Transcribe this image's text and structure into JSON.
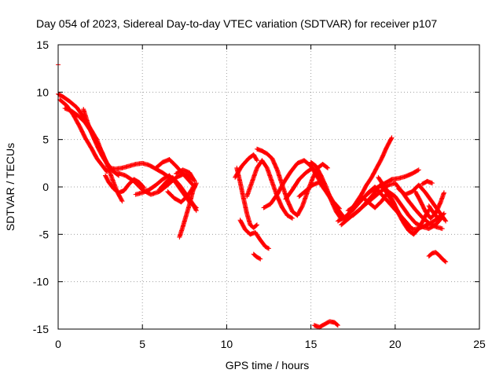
{
  "chart_data": {
    "type": "scatter",
    "title": "Day 054 of 2023, Sidereal Day-to-day VTEC variation (SDTVAR) for receiver p107",
    "xlabel": "GPS time / hours",
    "ylabel": "SDTVAR / TECUs",
    "xlim": [
      0,
      25
    ],
    "ylim": [
      -15,
      15
    ],
    "xticks": [
      "0",
      "5",
      "10",
      "15",
      "20",
      "25"
    ],
    "yticks": [
      "-15",
      "-10",
      "-5",
      "0",
      "5",
      "10",
      "15"
    ],
    "grid": true,
    "marker_color": "#ff0000",
    "series": [
      {
        "x": [
          0.0,
          0.3,
          0.7,
          1.1,
          1.5,
          1.9,
          2.3,
          2.6,
          2.9,
          3.2
        ],
        "y": [
          9.8,
          9.5,
          9.0,
          8.4,
          7.4,
          6.2,
          5.0,
          3.6,
          2.5,
          1.8
        ]
      },
      {
        "x": [
          0.1,
          0.5,
          0.9,
          1.3,
          1.6,
          2.0,
          2.3,
          2.6,
          2.9
        ],
        "y": [
          9.2,
          8.6,
          7.6,
          6.3,
          5.2,
          4.0,
          3.0,
          2.3,
          1.6
        ]
      },
      {
        "x": [
          0.4,
          0.8,
          1.2,
          1.6,
          1.9,
          2.2,
          2.6,
          2.9,
          3.2,
          3.5,
          3.8
        ],
        "y": [
          8.3,
          8.0,
          7.5,
          6.8,
          6.0,
          5.0,
          3.7,
          2.4,
          0.9,
          -0.5,
          -1.5
        ]
      },
      {
        "x": [
          1.5,
          1.8,
          2.1,
          2.4,
          2.7,
          3.0,
          3.3,
          3.6
        ],
        "y": [
          8.2,
          6.5,
          5.2,
          4.0,
          3.0,
          2.2,
          1.6,
          1.2
        ]
      },
      {
        "x": [
          2.8,
          3.0,
          3.3,
          3.6,
          3.9,
          4.2,
          4.5,
          4.8,
          5.1
        ],
        "y": [
          1.2,
          0.5,
          -0.2,
          -0.6,
          -0.4,
          0.3,
          0.8,
          0.5,
          -0.1
        ]
      },
      {
        "x": [
          3.0,
          3.4,
          3.8,
          4.2,
          4.6,
          5.0,
          5.4,
          5.8,
          6.2,
          6.6
        ],
        "y": [
          2.0,
          1.9,
          2.0,
          2.2,
          2.4,
          2.5,
          2.3,
          1.9,
          1.5,
          1.0
        ]
      },
      {
        "x": [
          3.5,
          4.0,
          4.5,
          5.0,
          5.5,
          6.0,
          6.5,
          7.0,
          7.5,
          8.0
        ],
        "y": [
          1.5,
          1.2,
          0.6,
          -0.3,
          -0.8,
          -0.5,
          0.2,
          1.0,
          1.4,
          0.8
        ]
      },
      {
        "x": [
          4.6,
          5.0,
          5.4,
          5.8,
          6.2,
          6.6,
          7.0,
          7.4,
          7.8,
          8.2
        ],
        "y": [
          -0.8,
          -0.6,
          -0.3,
          0.2,
          0.8,
          1.2,
          0.4,
          -0.6,
          -1.6,
          -2.2
        ]
      },
      {
        "x": [
          5.8,
          6.2,
          6.6,
          7.0,
          7.4,
          7.8,
          8.1
        ],
        "y": [
          2.0,
          2.6,
          2.9,
          2.2,
          1.4,
          0.6,
          0.0
        ]
      },
      {
        "x": [
          6.0,
          6.4,
          6.8,
          7.2,
          7.6,
          8.0,
          8.2
        ],
        "y": [
          -0.3,
          0.5,
          1.0,
          0.2,
          -0.8,
          -1.8,
          -2.5
        ]
      },
      {
        "x": [
          6.5,
          6.9,
          7.3,
          7.7,
          8.1
        ],
        "y": [
          -0.5,
          -1.2,
          -1.6,
          -0.9,
          0.2
        ]
      },
      {
        "x": [
          7.2,
          7.4,
          7.6,
          7.8,
          8.0,
          8.2
        ],
        "y": [
          -5.3,
          -4.2,
          -3.0,
          -1.8,
          -0.4,
          0.4
        ]
      },
      {
        "x": [
          7.0,
          7.4,
          7.8,
          8.1
        ],
        "y": [
          1.4,
          1.8,
          1.5,
          0.6
        ]
      },
      {
        "x": [
          10.6,
          10.8,
          11.0,
          11.2,
          11.4,
          11.6,
          11.8
        ],
        "y": [
          2.0,
          0.5,
          -1.2,
          -2.8,
          -4.0,
          -4.3,
          -4.0
        ]
      },
      {
        "x": [
          10.5,
          10.9,
          11.3,
          11.6,
          11.8
        ],
        "y": [
          1.0,
          2.2,
          3.0,
          3.4,
          2.8
        ]
      },
      {
        "x": [
          10.8,
          11.1,
          11.4,
          11.7,
          12.0,
          12.3,
          12.5
        ],
        "y": [
          -3.5,
          -4.5,
          -5.0,
          -4.8,
          -5.6,
          -6.3,
          -6.5
        ]
      },
      {
        "x": [
          11.6,
          11.8,
          12.0
        ],
        "y": [
          -7.1,
          -7.4,
          -7.6
        ]
      },
      {
        "x": [
          11.2,
          11.5,
          11.8,
          12.1,
          12.4,
          12.7,
          13.0,
          13.3,
          13.6,
          13.9
        ],
        "y": [
          -1.0,
          0.5,
          2.0,
          2.8,
          2.0,
          0.5,
          -1.0,
          -2.2,
          -3.0,
          -3.3
        ]
      },
      {
        "x": [
          11.8,
          12.1,
          12.4,
          12.7,
          13.0,
          13.3,
          13.6,
          13.9,
          14.2,
          14.5,
          14.8,
          15.1,
          15.4,
          15.7,
          16.0
        ],
        "y": [
          4.0,
          3.8,
          3.5,
          3.0,
          1.8,
          0.2,
          -1.4,
          -2.6,
          -3.0,
          -2.0,
          -0.5,
          0.9,
          2.0,
          2.4,
          2.0
        ]
      },
      {
        "x": [
          12.2,
          12.6,
          13.0,
          13.4,
          13.8,
          14.2,
          14.6,
          15.0,
          15.4,
          15.8
        ],
        "y": [
          -2.2,
          -1.8,
          -0.8,
          0.5,
          1.6,
          2.5,
          2.8,
          2.2,
          1.0,
          -0.2
        ]
      },
      {
        "x": [
          13.5,
          13.9,
          14.3,
          14.7,
          15.1,
          15.5,
          15.9,
          16.3,
          16.7
        ],
        "y": [
          -1.3,
          -0.3,
          0.8,
          1.5,
          2.0,
          1.2,
          -0.3,
          -1.5,
          -2.3
        ]
      },
      {
        "x": [
          14.3,
          14.7,
          15.1,
          15.5,
          15.9,
          16.3,
          16.7,
          17.1
        ],
        "y": [
          -1.0,
          -0.4,
          0.2,
          0.5,
          -0.5,
          -1.6,
          -2.6,
          -3.5
        ]
      },
      {
        "x": [
          15.0,
          15.3,
          15.6,
          15.9,
          16.2,
          16.5,
          16.8,
          17.1,
          17.4,
          17.7,
          18.0,
          18.3,
          18.6,
          18.9,
          19.2,
          19.5,
          19.8
        ],
        "y": [
          2.6,
          2.2,
          1.2,
          0.0,
          -1.4,
          -2.6,
          -3.4,
          -3.2,
          -2.4,
          -1.6,
          -0.8,
          0.2,
          1.0,
          2.0,
          3.0,
          4.2,
          5.2
        ]
      },
      {
        "x": [
          16.6,
          17.0,
          17.4,
          17.8,
          18.2,
          18.6,
          19.0,
          19.4,
          19.8,
          20.2,
          20.6,
          21.0,
          21.4
        ],
        "y": [
          -3.6,
          -3.2,
          -2.6,
          -1.8,
          -1.0,
          -0.4,
          0.0,
          0.4,
          0.8,
          0.9,
          1.1,
          1.4,
          1.8
        ]
      },
      {
        "x": [
          16.8,
          17.2,
          17.6,
          18.0,
          18.4,
          18.8,
          19.2,
          19.6,
          20.0,
          20.4,
          20.8,
          21.2,
          21.6,
          22.0,
          22.4,
          22.8
        ],
        "y": [
          -4.0,
          -3.4,
          -2.8,
          -2.2,
          -1.6,
          -1.0,
          -0.4,
          0.2,
          0.4,
          -0.5,
          -1.5,
          -2.4,
          -3.2,
          -3.8,
          -4.2,
          -4.4
        ]
      },
      {
        "x": [
          17.2,
          17.6,
          18.0,
          18.4,
          18.8,
          19.2,
          19.6,
          20.0,
          20.4,
          20.8
        ],
        "y": [
          -2.5,
          -2.0,
          -1.4,
          -0.6,
          0.0,
          -0.8,
          -1.6,
          -2.4,
          -3.2,
          -4.0
        ]
      },
      {
        "x": [
          17.5,
          17.9,
          18.3,
          18.7,
          19.1,
          19.5,
          19.9,
          20.3,
          20.7,
          21.1,
          21.5,
          21.9,
          22.3,
          22.7
        ],
        "y": [
          -3.0,
          -2.4,
          -1.6,
          -0.8,
          0.2,
          -0.6,
          -1.8,
          -3.0,
          -4.0,
          -4.5,
          -4.3,
          -4.0,
          -3.6,
          -3.0
        ]
      },
      {
        "x": [
          18.0,
          18.4,
          18.8,
          19.2,
          19.6,
          20.0,
          20.4,
          20.8,
          21.2,
          21.6,
          22.0,
          22.4,
          22.8
        ],
        "y": [
          -1.0,
          -1.6,
          -2.2,
          -1.5,
          -0.5,
          -1.0,
          -2.0,
          -3.0,
          -3.8,
          -4.2,
          -4.4,
          -4.0,
          -3.2
        ]
      },
      {
        "x": [
          19.0,
          19.3,
          19.6,
          19.9,
          20.2,
          20.5,
          20.8,
          21.1,
          21.4,
          21.7,
          22.0
        ],
        "y": [
          1.0,
          0.2,
          -0.6,
          -1.6,
          -2.8,
          -3.8,
          -4.6,
          -5.0,
          -4.4,
          -3.4,
          -2.4
        ]
      },
      {
        "x": [
          20.2,
          20.6,
          21.0,
          21.4,
          21.8,
          22.2,
          22.6,
          23.0
        ],
        "y": [
          -0.2,
          -0.8,
          -0.5,
          0.2,
          -0.6,
          -1.6,
          -2.6,
          -3.6
        ]
      },
      {
        "x": [
          21.2,
          21.5,
          21.8,
          22.1,
          22.4,
          22.7,
          22.9
        ],
        "y": [
          -0.5,
          -1.5,
          -2.6,
          -3.3,
          -2.8,
          -1.6,
          -0.6
        ]
      },
      {
        "x": [
          21.6,
          21.9,
          22.2
        ],
        "y": [
          0.3,
          0.6,
          0.4
        ]
      },
      {
        "x": [
          22.0,
          22.3,
          22.6,
          22.9
        ],
        "y": [
          -2.0,
          -2.8,
          -3.4,
          -2.8
        ]
      },
      {
        "x": [
          22.0,
          22.2,
          22.4,
          22.6,
          22.8,
          23.0
        ],
        "y": [
          -7.3,
          -7.0,
          -6.9,
          -7.2,
          -7.6,
          -7.9
        ]
      },
      {
        "x": [
          15.2,
          15.5,
          15.8,
          16.1,
          16.4,
          16.6
        ],
        "y": [
          -14.6,
          -14.8,
          -14.5,
          -14.2,
          -14.3,
          -14.6
        ]
      },
      {
        "x": [
          0.0
        ],
        "y": [
          12.9
        ]
      }
    ]
  }
}
